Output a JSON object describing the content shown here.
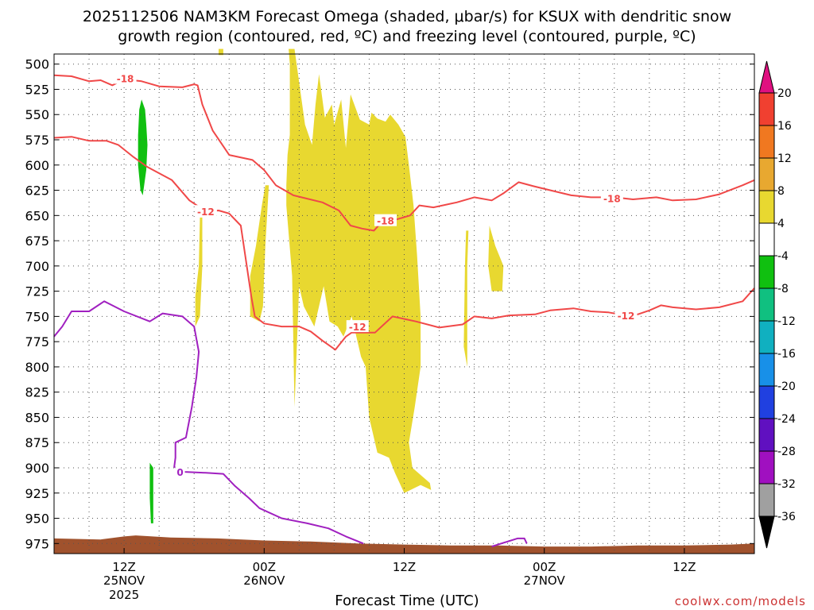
{
  "title_line1": "2025112506 NAM3KM Forecast Omega (shaded, μbar/s) for KSUX with dendritic snow",
  "title_line2": "growth region (contoured, red, ºC) and freezing level (contoured, purple, ºC)",
  "xlabel": "Forecast Time (UTC)",
  "credit": "coolwx.com/models",
  "chart_data": {
    "type": "heatmap",
    "variable": "omega",
    "units": "μbar/s",
    "forecast_hour_range": [
      0,
      60
    ],
    "pressure_range_hPa": [
      490,
      985
    ],
    "y_ticks": [
      500,
      525,
      550,
      575,
      600,
      625,
      650,
      675,
      700,
      725,
      750,
      775,
      800,
      825,
      850,
      875,
      900,
      925,
      950,
      975
    ],
    "x_ticks": [
      {
        "hour": 6,
        "label": "12Z",
        "date": "25NOV",
        "year": "2025"
      },
      {
        "hour": 18,
        "label": "00Z",
        "date": "26NOV",
        "year": ""
      },
      {
        "hour": 30,
        "label": "12Z",
        "date": "",
        "year": ""
      },
      {
        "hour": 42,
        "label": "00Z",
        "date": "27NOV",
        "year": ""
      },
      {
        "hour": 54,
        "label": "12Z",
        "date": "",
        "year": ""
      }
    ],
    "colorbar": {
      "labels": [
        "20",
        "16",
        "12",
        "8",
        "4",
        "-4",
        "-8",
        "-12",
        "-16",
        "-20",
        "-24",
        "-28",
        "-32",
        "-36"
      ],
      "bins": [
        {
          "from": 16,
          "to": 20,
          "color": "#f04030"
        },
        {
          "from": 12,
          "to": 16,
          "color": "#f07820"
        },
        {
          "from": 8,
          "to": 12,
          "color": "#e8a830"
        },
        {
          "from": 4,
          "to": 8,
          "color": "#e8d830"
        },
        {
          "from": -4,
          "to": 4,
          "color": "#ffffff"
        },
        {
          "from": -8,
          "to": -4,
          "color": "#10c010"
        },
        {
          "from": -12,
          "to": -8,
          "color": "#10c080"
        },
        {
          "from": -16,
          "to": -12,
          "color": "#10b0c0"
        },
        {
          "from": -20,
          "to": -16,
          "color": "#1890e8"
        },
        {
          "from": -24,
          "to": -20,
          "color": "#2040e0"
        },
        {
          "from": -28,
          "to": -24,
          "color": "#6010c0"
        },
        {
          "from": -32,
          "to": -28,
          "color": "#a010c0"
        },
        {
          "from": -36,
          "to": -32,
          "color": "#a0a0a0"
        }
      ],
      "top_arrow_color": "#e01080",
      "bottom_arrow_color": "#000000"
    },
    "shaded_regions": [
      {
        "label": "4 to 8",
        "color": "#e8d830",
        "points": [
          [
            14.1,
            485
          ],
          [
            14.5,
            485
          ],
          [
            14.5,
            491
          ],
          [
            14.1,
            491
          ]
        ]
      },
      {
        "label": "4 to 8",
        "color": "#e8d830",
        "points": [
          [
            20.1,
            485
          ],
          [
            20.6,
            485
          ],
          [
            21.5,
            560
          ],
          [
            22.1,
            580
          ],
          [
            22.4,
            540
          ],
          [
            22.7,
            510
          ],
          [
            23.2,
            553
          ],
          [
            23.8,
            540
          ],
          [
            24.0,
            560
          ],
          [
            24.6,
            535
          ],
          [
            25.0,
            583
          ],
          [
            25.4,
            530
          ],
          [
            26.2,
            555
          ],
          [
            27.0,
            560
          ],
          [
            27.2,
            548
          ],
          [
            27.7,
            554
          ],
          [
            28.4,
            557
          ],
          [
            28.8,
            550
          ],
          [
            29.5,
            560
          ],
          [
            30.1,
            572
          ],
          [
            30.4,
            600
          ],
          [
            30.8,
            640
          ],
          [
            31.1,
            690
          ],
          [
            31.4,
            750
          ],
          [
            31.4,
            800
          ],
          [
            30.9,
            840
          ],
          [
            30.4,
            875
          ],
          [
            30.7,
            900
          ],
          [
            32.2,
            915
          ],
          [
            32.3,
            922
          ],
          [
            31.4,
            917
          ],
          [
            30.0,
            925
          ],
          [
            29.2,
            905
          ],
          [
            28.7,
            890
          ],
          [
            27.7,
            885
          ],
          [
            27.0,
            850
          ],
          [
            26.7,
            800
          ],
          [
            26.3,
            790
          ],
          [
            25.5,
            750
          ],
          [
            24.8,
            770
          ],
          [
            24.3,
            760
          ],
          [
            23.6,
            755
          ],
          [
            23.1,
            720
          ],
          [
            22.3,
            760
          ],
          [
            21.4,
            740
          ],
          [
            21.0,
            720
          ],
          [
            20.8,
            780
          ],
          [
            20.6,
            840
          ],
          [
            20.4,
            710
          ],
          [
            19.9,
            640
          ],
          [
            19.9,
            620
          ],
          [
            20.0,
            590
          ],
          [
            20.2,
            570
          ],
          [
            20.2,
            500
          ]
        ]
      },
      {
        "label": "4 to 8",
        "color": "#e8d830",
        "points": [
          [
            18.1,
            620
          ],
          [
            18.4,
            620
          ],
          [
            18.1,
            680
          ],
          [
            17.9,
            740
          ],
          [
            17.6,
            755
          ],
          [
            16.8,
            750
          ],
          [
            16.8,
            710
          ],
          [
            17.3,
            680
          ],
          [
            17.8,
            640
          ]
        ]
      },
      {
        "label": "4 to 8",
        "color": "#e8d830",
        "points": [
          [
            12.5,
            652
          ],
          [
            12.7,
            652
          ],
          [
            12.7,
            700
          ],
          [
            12.5,
            750
          ],
          [
            12.1,
            760
          ],
          [
            12.1,
            730
          ],
          [
            12.4,
            700
          ]
        ]
      },
      {
        "label": "4 to 8",
        "color": "#e8d830",
        "points": [
          [
            35.3,
            665
          ],
          [
            35.5,
            665
          ],
          [
            35.4,
            700
          ],
          [
            35.4,
            800
          ],
          [
            35.1,
            780
          ],
          [
            35.2,
            700
          ]
        ]
      },
      {
        "label": "4 to 8",
        "color": "#e8d830",
        "points": [
          [
            37.3,
            660
          ],
          [
            37.8,
            680
          ],
          [
            38.5,
            700
          ],
          [
            38.4,
            725
          ],
          [
            37.5,
            725
          ],
          [
            37.2,
            700
          ]
        ]
      },
      {
        "label": "-4 to -8",
        "color": "#10c010",
        "points": [
          [
            7.5,
            535
          ],
          [
            7.8,
            545
          ],
          [
            7.9,
            560
          ],
          [
            8.0,
            580
          ],
          [
            7.9,
            605
          ],
          [
            7.6,
            630
          ],
          [
            7.4,
            625
          ],
          [
            7.2,
            600
          ],
          [
            7.2,
            570
          ],
          [
            7.3,
            545
          ]
        ]
      },
      {
        "label": "-4 to -8",
        "color": "#10c010",
        "points": [
          [
            8.2,
            895
          ],
          [
            8.5,
            900
          ],
          [
            8.5,
            930
          ],
          [
            8.5,
            955
          ],
          [
            8.3,
            955
          ],
          [
            8.2,
            930
          ]
        ]
      }
    ],
    "terrain": {
      "label": "ground",
      "color": "#a0522d",
      "top_pressure": [
        [
          0,
          970
        ],
        [
          4,
          971
        ],
        [
          6,
          968
        ],
        [
          7,
          967
        ],
        [
          10,
          969
        ],
        [
          14,
          970
        ],
        [
          18,
          972
        ],
        [
          22,
          973
        ],
        [
          26,
          975
        ],
        [
          30,
          976
        ],
        [
          34,
          977
        ],
        [
          38,
          977
        ],
        [
          42,
          978
        ],
        [
          46,
          978
        ],
        [
          50,
          977
        ],
        [
          54,
          977
        ],
        [
          58,
          976
        ],
        [
          60,
          975
        ]
      ]
    },
    "contours": [
      {
        "name": "-18 upper",
        "value": -18,
        "color": "#f04848",
        "labels": [
          {
            "text": "-18",
            "at": [
              6.1,
              514
            ]
          }
        ],
        "points": [
          [
            0,
            511
          ],
          [
            1.5,
            512
          ],
          [
            3,
            517
          ],
          [
            4,
            516
          ],
          [
            5,
            521
          ],
          [
            6,
            515
          ],
          [
            7.5,
            517
          ],
          [
            9,
            522
          ],
          [
            11,
            523
          ],
          [
            12,
            520
          ],
          [
            12.3,
            521
          ],
          [
            12.7,
            540
          ],
          [
            13.6,
            566
          ],
          [
            15,
            590
          ],
          [
            17,
            595
          ],
          [
            18,
            605
          ],
          [
            19,
            620
          ],
          [
            20.5,
            630
          ],
          [
            23,
            637
          ],
          [
            24.4,
            645
          ],
          [
            25.4,
            660
          ],
          [
            26.4,
            663
          ],
          [
            27.4,
            665
          ],
          [
            27.8,
            660
          ],
          [
            29,
            655
          ],
          [
            30.5,
            650
          ],
          [
            31.3,
            640
          ],
          [
            32.5,
            642
          ],
          [
            34.5,
            637
          ],
          [
            36,
            632
          ],
          [
            37.5,
            635
          ],
          [
            38.5,
            628
          ],
          [
            39.8,
            617
          ],
          [
            41.1,
            621
          ],
          [
            42.5,
            625
          ],
          [
            44.3,
            630
          ],
          [
            46,
            632
          ],
          [
            48,
            632
          ],
          [
            49.6,
            634
          ],
          [
            51.6,
            632
          ],
          [
            53,
            635
          ],
          [
            55,
            634
          ],
          [
            57,
            629
          ],
          [
            59,
            620
          ],
          [
            60,
            615
          ]
        ]
      },
      {
        "name": "-18 lower",
        "value": -18,
        "color": "#f04848",
        "labels": [
          {
            "text": "-18",
            "at": [
              28.4,
              655
            ]
          },
          {
            "text": "-18",
            "at": [
              47.8,
              633
            ]
          }
        ],
        "points": []
      },
      {
        "name": "-12",
        "value": -12,
        "color": "#f04848",
        "labels": [
          {
            "text": "-12",
            "at": [
              13.0,
              646
            ]
          },
          {
            "text": "-12",
            "at": [
              26.0,
              760
            ]
          },
          {
            "text": "-12",
            "at": [
              49.0,
              749
            ]
          }
        ],
        "points": [
          [
            0,
            573
          ],
          [
            1.5,
            572
          ],
          [
            3,
            576
          ],
          [
            4.5,
            576
          ],
          [
            5.5,
            580
          ],
          [
            6.8,
            592
          ],
          [
            8,
            602
          ],
          [
            10.1,
            615
          ],
          [
            11.6,
            635
          ],
          [
            13,
            646
          ],
          [
            14.1,
            645
          ],
          [
            15,
            648
          ],
          [
            16,
            660
          ],
          [
            16.9,
            730
          ],
          [
            17.2,
            750
          ],
          [
            18,
            757
          ],
          [
            19.5,
            760
          ],
          [
            21,
            760
          ],
          [
            22,
            765
          ],
          [
            23,
            774
          ],
          [
            24.1,
            783
          ],
          [
            25,
            770
          ],
          [
            25.5,
            766
          ],
          [
            27.5,
            766
          ],
          [
            29,
            750
          ],
          [
            31,
            755
          ],
          [
            33,
            761
          ],
          [
            35,
            758
          ],
          [
            36,
            750
          ],
          [
            37.5,
            752
          ],
          [
            39,
            749
          ],
          [
            41.2,
            748
          ],
          [
            42.5,
            744
          ],
          [
            44.5,
            742
          ],
          [
            46,
            745
          ],
          [
            47.5,
            746
          ],
          [
            49,
            749
          ],
          [
            50,
            748
          ],
          [
            51,
            744
          ],
          [
            52,
            739
          ],
          [
            53,
            741
          ],
          [
            55,
            743
          ],
          [
            57,
            741
          ],
          [
            59,
            735
          ],
          [
            60,
            722
          ]
        ]
      },
      {
        "name": "0 freezing level",
        "value": 0,
        "color": "#a020c0",
        "labels": [
          {
            "text": "0",
            "at": [
              10.8,
              904
            ]
          }
        ],
        "points": [
          [
            0,
            770
          ],
          [
            0.7,
            760
          ],
          [
            1.5,
            745
          ],
          [
            3,
            745
          ],
          [
            4.3,
            735
          ],
          [
            6,
            745
          ],
          [
            8.2,
            755
          ],
          [
            9.3,
            747
          ],
          [
            11,
            750
          ],
          [
            12,
            760
          ],
          [
            12.4,
            785
          ],
          [
            12.2,
            810
          ],
          [
            11.8,
            840
          ],
          [
            11.3,
            870
          ],
          [
            10.4,
            875
          ],
          [
            10.4,
            890
          ],
          [
            10.3,
            899
          ],
          [
            11.2,
            904
          ],
          [
            13,
            905
          ],
          [
            14.5,
            906
          ],
          [
            15.5,
            918
          ],
          [
            16.7,
            930
          ],
          [
            17.6,
            940
          ],
          [
            19.5,
            950
          ],
          [
            21.7,
            955
          ],
          [
            23.5,
            960
          ],
          [
            25,
            968
          ],
          [
            26.5,
            975
          ]
        ]
      },
      {
        "name": "0 small",
        "value": 0,
        "color": "#a020c0",
        "labels": [],
        "points": [
          [
            37.5,
            978
          ],
          [
            39.7,
            970
          ],
          [
            40.3,
            970
          ],
          [
            40.5,
            975
          ]
        ]
      }
    ]
  }
}
